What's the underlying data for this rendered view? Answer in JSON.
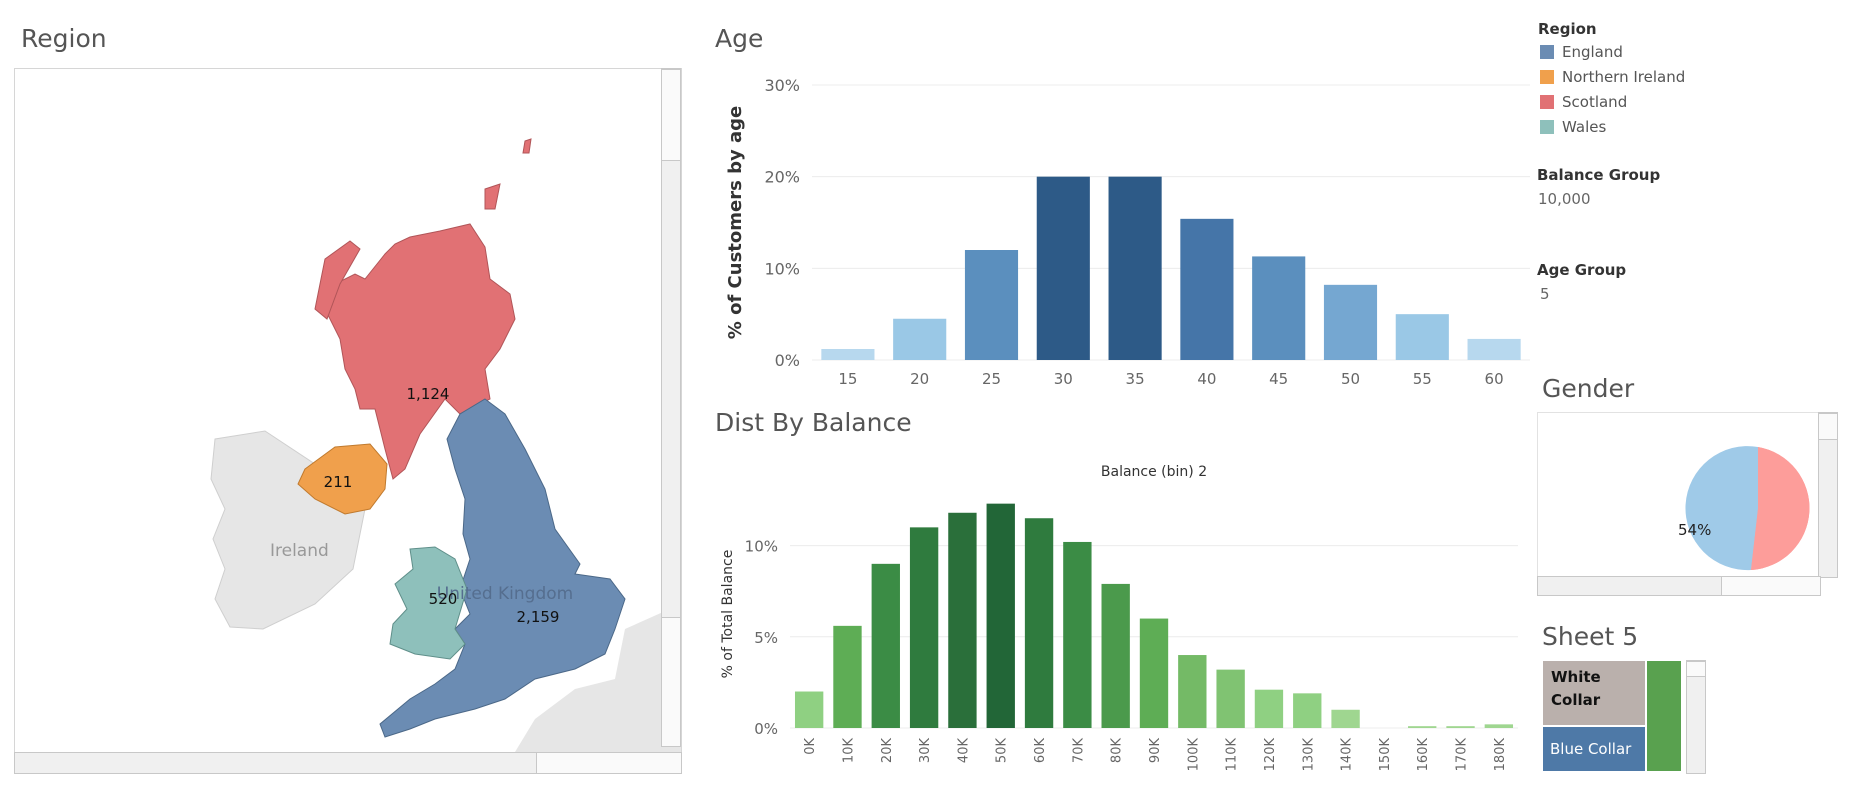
{
  "region_panel": {
    "title": "Region",
    "regions": [
      {
        "name": "Scotland",
        "value": "1,124"
      },
      {
        "name": "Northern Ireland",
        "value": "211"
      },
      {
        "name": "Wales",
        "value": "520"
      },
      {
        "name": "England",
        "value": "2,159"
      }
    ],
    "basemap_labels": [
      "Ireland",
      "United Kingdom"
    ]
  },
  "legend": {
    "title": "Region",
    "items": [
      {
        "label": "England",
        "color": "#6b8cb3"
      },
      {
        "label": "Northern Ireland",
        "color": "#f0a04c"
      },
      {
        "label": "Scotland",
        "color": "#e17174"
      },
      {
        "label": "Wales",
        "color": "#8ec0bb"
      }
    ]
  },
  "filters": {
    "balance_group": {
      "title": "Balance Group",
      "value": "10,000"
    },
    "age_group": {
      "title": "Age Group",
      "value": "5"
    }
  },
  "gender_panel": {
    "title": "Gender",
    "pie_label": "54%"
  },
  "sheet5_panel": {
    "title": "Sheet 5",
    "white_collar": "White Collar",
    "blue_collar": "Blue Collar"
  },
  "chart_data": [
    {
      "type": "bar",
      "title": "Age",
      "ylabel": "% of Customers by age",
      "xlabel": "",
      "categories": [
        "15",
        "20",
        "25",
        "30",
        "35",
        "40",
        "45",
        "50",
        "55",
        "60"
      ],
      "values": [
        1.2,
        4.5,
        12,
        20,
        20,
        15.4,
        11.3,
        8.2,
        5,
        2.3
      ],
      "ylim": [
        0,
        30
      ],
      "yticks": [
        "0%",
        "10%",
        "20%",
        "30%"
      ],
      "colors": [
        "#b7d8ee",
        "#9ac8e6",
        "#5b8fbe",
        "#2d5a87",
        "#2d5a87",
        "#4575a8",
        "#5b8fbe",
        "#75a7d1",
        "#9ac8e6",
        "#b7d8ee"
      ]
    },
    {
      "type": "bar",
      "title": "Dist By Balance",
      "subtitle": "Balance (bin) 2",
      "ylabel": "% of Total Balance",
      "xlabel": "",
      "categories": [
        "0K",
        "10K",
        "20K",
        "30K",
        "40K",
        "50K",
        "60K",
        "70K",
        "80K",
        "90K",
        "100K",
        "110K",
        "120K",
        "130K",
        "140K",
        "150K",
        "160K",
        "170K",
        "180K"
      ],
      "values": [
        2,
        5.6,
        9,
        11,
        11.8,
        12.3,
        11.5,
        10.2,
        7.9,
        6,
        4,
        3.2,
        2.1,
        1.9,
        1,
        0,
        0.1,
        0.1,
        0.2
      ],
      "ylim": [
        0,
        12.5
      ],
      "yticks": [
        "0%",
        "5%",
        "10%"
      ],
      "colors": [
        "#8fd082",
        "#5ead55",
        "#3b8c45",
        "#2f7b3e",
        "#2a6f3a",
        "#226637",
        "#2f7b3e",
        "#3b8c45",
        "#4b9a4c",
        "#5ead55",
        "#74ba66",
        "#80c372",
        "#8fd082",
        "#8fd082",
        "#9fd690",
        "#9fd690",
        "#9fd690",
        "#9fd690",
        "#9fd690"
      ]
    }
  ]
}
